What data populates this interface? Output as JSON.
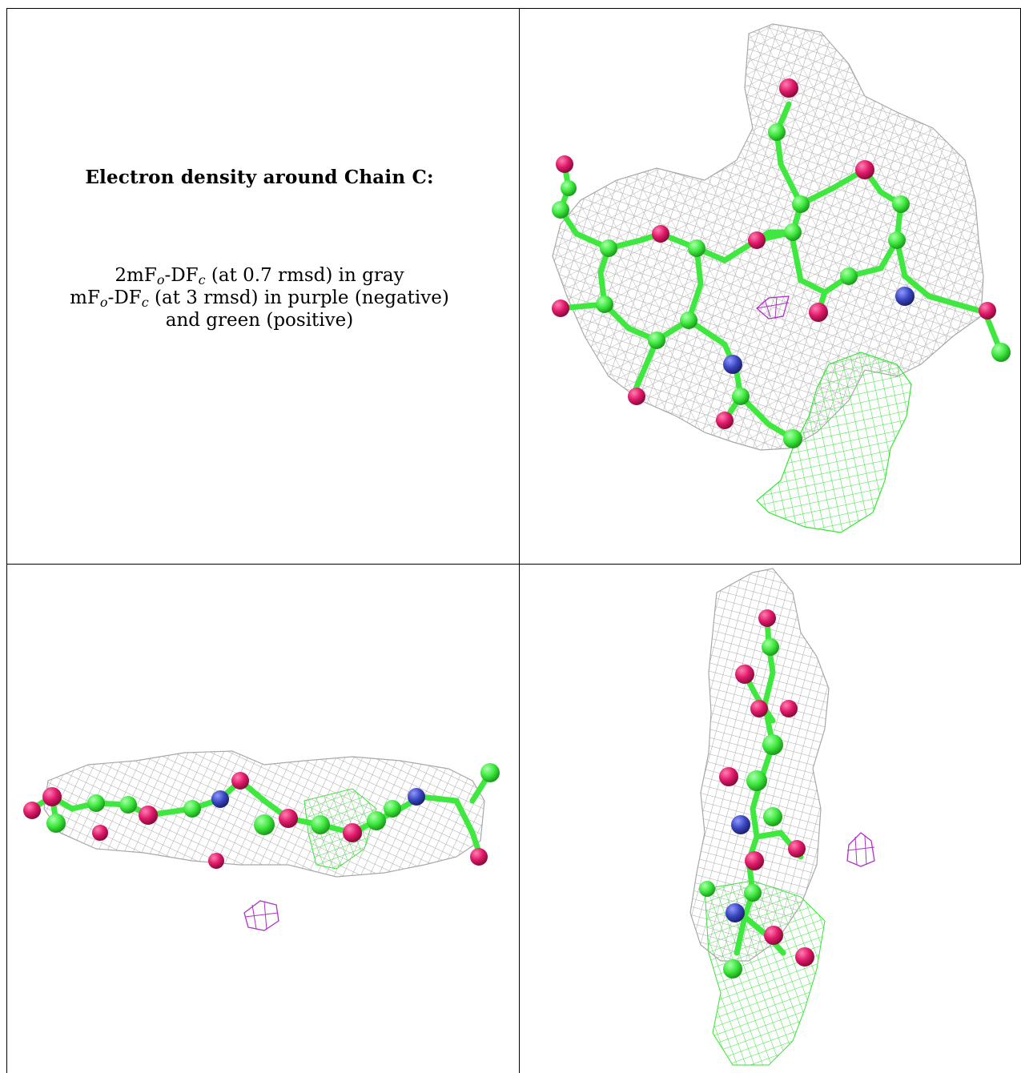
{
  "caption": {
    "title": "Electron density around Chain C:",
    "line1_prefix": "2mF",
    "line1_sub1": "o",
    "line1_mid": "-DF",
    "line1_sub2": "c",
    "line1_suffix": " (at 0.7 rmsd) in gray",
    "line2_prefix": "mF",
    "line2_sub1": "o",
    "line2_mid": "-DF",
    "line2_sub2": "c",
    "line2_suffix": " (at 3 rmsd) in purple (negative)",
    "line3": "and green (positive)"
  },
  "colors": {
    "mesh_2fofc": "#a8a8a8",
    "mesh_positive": "#33e633",
    "mesh_negative": "#b030c8",
    "carbon": "#3ee83e",
    "oxygen": "#e0196a",
    "nitrogen": "#3b47c0",
    "border": "#000000"
  },
  "panels": [
    {
      "name": "top-right",
      "view": "face-on ligand view"
    },
    {
      "name": "bottom-left",
      "view": "edge-on horizontal view"
    },
    {
      "name": "bottom-right",
      "view": "edge-on vertical view"
    }
  ]
}
